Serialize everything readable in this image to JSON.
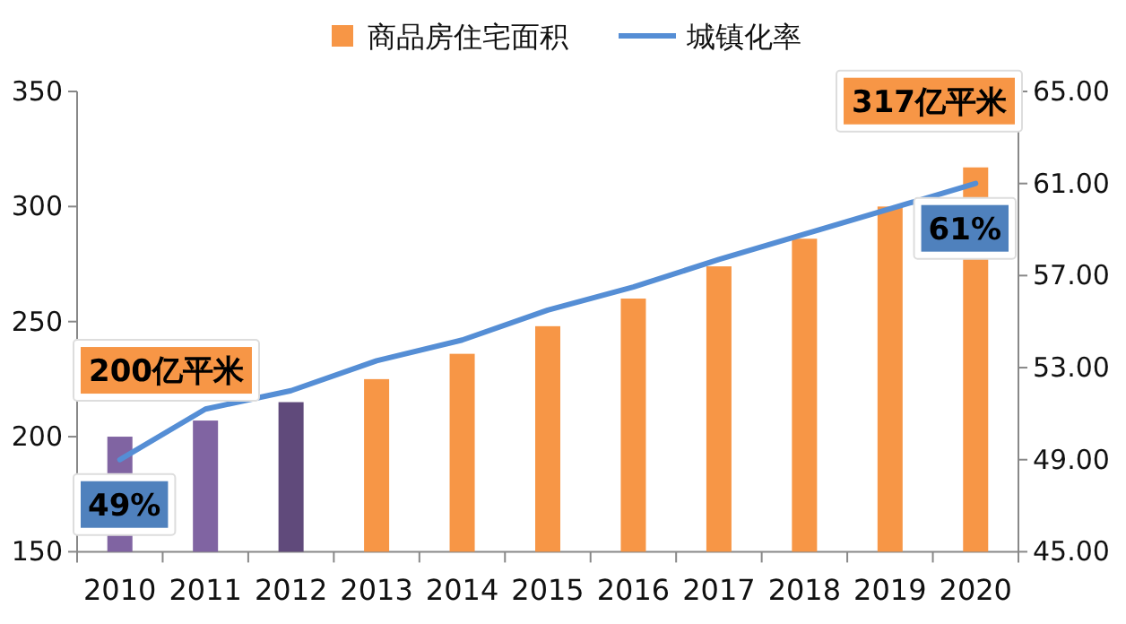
{
  "chart_data": {
    "type": "bar",
    "categories": [
      "2010",
      "2011",
      "2012",
      "2013",
      "2014",
      "2015",
      "2016",
      "2017",
      "2018",
      "2019",
      "2020"
    ],
    "series": [
      {
        "name": "商品房住宅面积",
        "color": "#f79646",
        "colors": [
          "#8064a2",
          "#8064a2",
          "#604a7b",
          "#f79646",
          "#f79646",
          "#f79646",
          "#f79646",
          "#f79646",
          "#f79646",
          "#f79646",
          "#f79646"
        ],
        "values": [
          200,
          207,
          215,
          225,
          236,
          248,
          260,
          274,
          286,
          300,
          317
        ]
      },
      {
        "name": "城镇化率",
        "type": "line",
        "axis": "y2",
        "color": "#558ed5",
        "values": [
          49,
          51.2,
          52.0,
          53.3,
          54.2,
          55.5,
          56.5,
          57.7,
          58.8,
          59.9,
          61
        ],
        "value_labels": [
          "49%",
          null,
          null,
          null,
          null,
          null,
          null,
          null,
          null,
          null,
          "61%"
        ]
      }
    ],
    "ylim": [
      150,
      350
    ],
    "yticks": [
      150,
      200,
      250,
      300,
      350
    ],
    "y2lim": [
      45,
      65
    ],
    "y2ticks": [
      {
        "value": 45,
        "label": "45.00"
      },
      {
        "value": 49,
        "label": "49.00"
      },
      {
        "value": 53,
        "label": "53.00"
      },
      {
        "value": 57,
        "label": "57.00"
      },
      {
        "value": 61,
        "label": "61.00"
      },
      {
        "value": 65,
        "label": "65.00"
      }
    ],
    "annotations": [
      {
        "text": "200亿平米",
        "x": "2010",
        "y": 200
      },
      {
        "text": "317亿平米",
        "x": "2020",
        "y": 317
      }
    ],
    "legend": "top",
    "grid": false
  }
}
